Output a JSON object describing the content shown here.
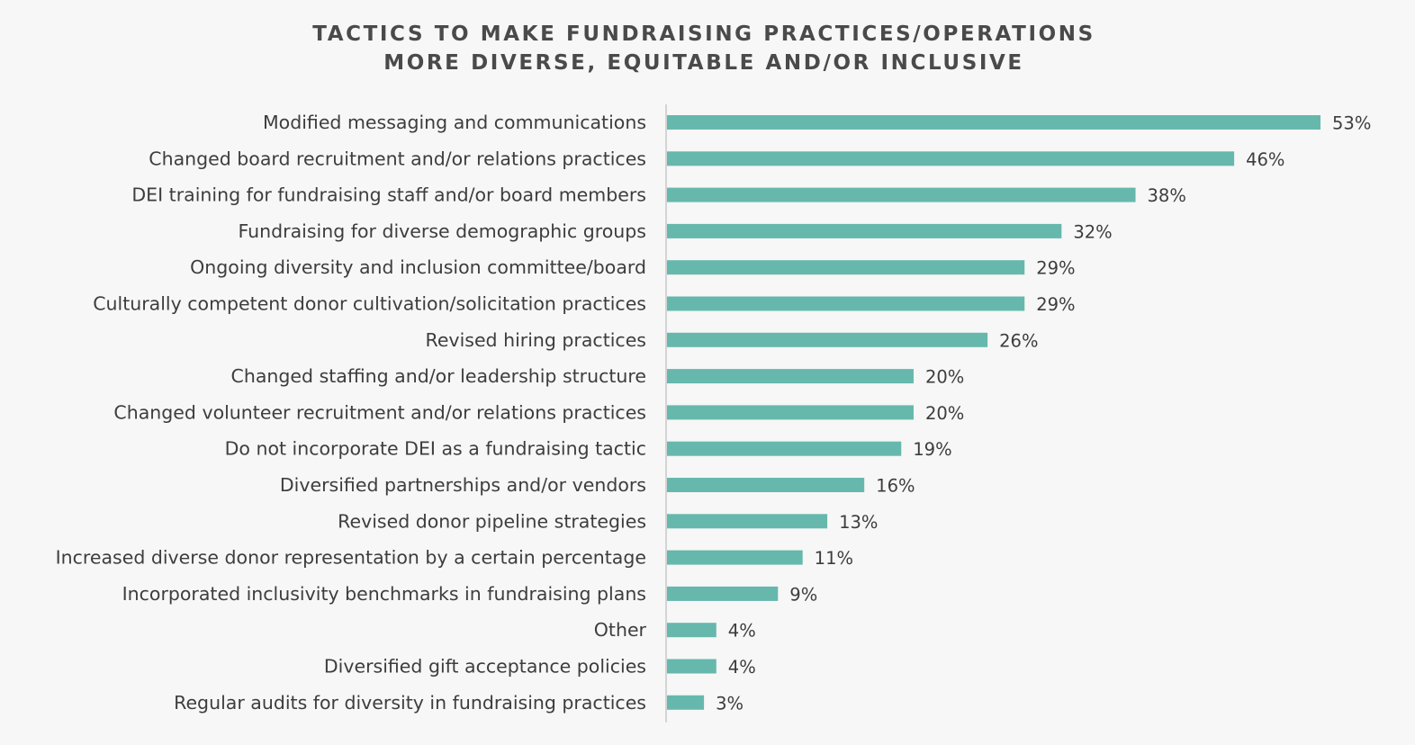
{
  "chart_data": {
    "type": "bar",
    "orientation": "horizontal",
    "title_lines": [
      "TACTICS TO MAKE FUNDRAISING PRACTICES/OPERATIONS",
      "MORE DIVERSE, EQUITABLE AND/OR INCLUSIVE"
    ],
    "categories": [
      "Modified messaging and communications",
      "Changed board recruitment and/or relations practices",
      "DEI training for fundraising staff and/or board members",
      "Fundraising for diverse demographic groups",
      "Ongoing diversity and inclusion committee/board",
      "Culturally competent donor cultivation/solicitation practices",
      "Revised hiring practices",
      "Changed staffing and/or leadership structure",
      "Changed volunteer recruitment and/or relations practices",
      "Do not incorporate DEI as a fundraising tactic",
      "Diversified partnerships and/or vendors",
      "Revised donor pipeline strategies",
      "Increased diverse donor representation by a certain percentage",
      "Incorporated inclusivity benchmarks in fundraising plans",
      "Other",
      "Diversified gift acceptance policies",
      "Regular audits for diversity in fundraising practices"
    ],
    "values": [
      53,
      46,
      38,
      32,
      29,
      29,
      26,
      20,
      20,
      19,
      16,
      13,
      11,
      9,
      4,
      4,
      3
    ],
    "value_labels": [
      "53%",
      "46%",
      "38%",
      "32%",
      "29%",
      "29%",
      "26%",
      "20%",
      "20%",
      "19%",
      "16%",
      "13%",
      "11%",
      "9%",
      "4%",
      "4%",
      "3%"
    ],
    "unit": "%",
    "xlim": [
      0,
      53
    ],
    "grid": false,
    "legend": "none",
    "bar_color": "#66b8ad",
    "axis_color": "#c8c8c8",
    "text_color": "#3d3d3d",
    "background": "#f6f7f6"
  }
}
